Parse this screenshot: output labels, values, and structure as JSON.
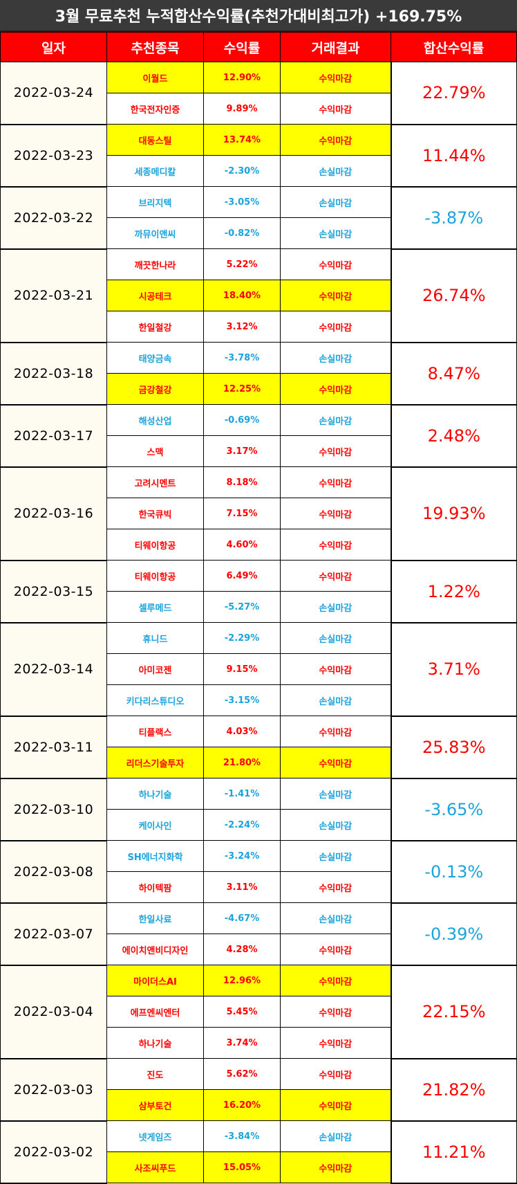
{
  "title": "3월 무료추천 누적합산수익률(추천가대비최고가) +169.75%",
  "headers": [
    "일자",
    "추천종목",
    "수익률",
    "거래결과",
    "합산수익률"
  ],
  "colors": {
    "profit": "#ff0000",
    "loss": "#1aa3dd",
    "highlight": "#ffff00",
    "header_bg": "#ff0000",
    "title_bg": "#3a3a3a"
  },
  "groups": [
    {
      "date": "2022-03-24",
      "total": "22.79%",
      "total_sign": "pos",
      "rows": [
        {
          "stock": "이월드",
          "rate": "12.90%",
          "result": "수익마감",
          "hl": true
        },
        {
          "stock": "한국전자인증",
          "rate": "9.89%",
          "result": "수익마감",
          "hl": false
        }
      ]
    },
    {
      "date": "2022-03-23",
      "total": "11.44%",
      "total_sign": "pos",
      "rows": [
        {
          "stock": "대동스틸",
          "rate": "13.74%",
          "result": "수익마감",
          "hl": true
        },
        {
          "stock": "세종메디칼",
          "rate": "-2.30%",
          "result": "손실마감",
          "hl": false
        }
      ]
    },
    {
      "date": "2022-03-22",
      "total": "-3.87%",
      "total_sign": "neg",
      "rows": [
        {
          "stock": "브리지텍",
          "rate": "-3.05%",
          "result": "손실마감",
          "hl": false
        },
        {
          "stock": "까뮤이앤씨",
          "rate": "-0.82%",
          "result": "손실마감",
          "hl": false
        }
      ]
    },
    {
      "date": "2022-03-21",
      "total": "26.74%",
      "total_sign": "pos",
      "rows": [
        {
          "stock": "깨끗한나라",
          "rate": "5.22%",
          "result": "수익마감",
          "hl": false
        },
        {
          "stock": "시공테크",
          "rate": "18.40%",
          "result": "수익마감",
          "hl": true
        },
        {
          "stock": "한일철강",
          "rate": "3.12%",
          "result": "수익마감",
          "hl": false
        }
      ]
    },
    {
      "date": "2022-03-18",
      "total": "8.47%",
      "total_sign": "pos",
      "rows": [
        {
          "stock": "태양금속",
          "rate": "-3.78%",
          "result": "손실마감",
          "hl": false
        },
        {
          "stock": "금강철강",
          "rate": "12.25%",
          "result": "수익마감",
          "hl": true
        }
      ]
    },
    {
      "date": "2022-03-17",
      "total": "2.48%",
      "total_sign": "pos",
      "rows": [
        {
          "stock": "해성산업",
          "rate": "-0.69%",
          "result": "손실마감",
          "hl": false
        },
        {
          "stock": "스맥",
          "rate": "3.17%",
          "result": "수익마감",
          "hl": false
        }
      ]
    },
    {
      "date": "2022-03-16",
      "total": "19.93%",
      "total_sign": "pos",
      "rows": [
        {
          "stock": "고려시멘트",
          "rate": "8.18%",
          "result": "수익마감",
          "hl": false
        },
        {
          "stock": "한국큐빅",
          "rate": "7.15%",
          "result": "수익마감",
          "hl": false
        },
        {
          "stock": "티웨이항공",
          "rate": "4.60%",
          "result": "수익마감",
          "hl": false
        }
      ]
    },
    {
      "date": "2022-03-15",
      "total": "1.22%",
      "total_sign": "pos",
      "rows": [
        {
          "stock": "티웨이항공",
          "rate": "6.49%",
          "result": "수익마감",
          "hl": false
        },
        {
          "stock": "셀루메드",
          "rate": "-5.27%",
          "result": "손실마감",
          "hl": false
        }
      ]
    },
    {
      "date": "2022-03-14",
      "total": "3.71%",
      "total_sign": "pos",
      "rows": [
        {
          "stock": "휴니드",
          "rate": "-2.29%",
          "result": "손실마감",
          "hl": false
        },
        {
          "stock": "아미코젠",
          "rate": "9.15%",
          "result": "수익마감",
          "hl": false
        },
        {
          "stock": "키다리스튜디오",
          "rate": "-3.15%",
          "result": "손실마감",
          "hl": false
        }
      ]
    },
    {
      "date": "2022-03-11",
      "total": "25.83%",
      "total_sign": "pos",
      "rows": [
        {
          "stock": "티플랙스",
          "rate": "4.03%",
          "result": "수익마감",
          "hl": false
        },
        {
          "stock": "리더스기술투자",
          "rate": "21.80%",
          "result": "수익마감",
          "hl": true
        }
      ]
    },
    {
      "date": "2022-03-10",
      "total": "-3.65%",
      "total_sign": "neg",
      "rows": [
        {
          "stock": "하나기술",
          "rate": "-1.41%",
          "result": "손실마감",
          "hl": false
        },
        {
          "stock": "케이사인",
          "rate": "-2.24%",
          "result": "손실마감",
          "hl": false
        }
      ]
    },
    {
      "date": "2022-03-08",
      "total": "-0.13%",
      "total_sign": "neg",
      "rows": [
        {
          "stock": "SH에너지화학",
          "rate": "-3.24%",
          "result": "손실마감",
          "hl": false
        },
        {
          "stock": "하이텍팜",
          "rate": "3.11%",
          "result": "수익마감",
          "hl": false
        }
      ]
    },
    {
      "date": "2022-03-07",
      "total": "-0.39%",
      "total_sign": "neg",
      "rows": [
        {
          "stock": "한일사료",
          "rate": "-4.67%",
          "result": "손실마감",
          "hl": false
        },
        {
          "stock": "에이치앤비디자인",
          "rate": "4.28%",
          "result": "수익마감",
          "hl": false
        }
      ]
    },
    {
      "date": "2022-03-04",
      "total": "22.15%",
      "total_sign": "pos",
      "rows": [
        {
          "stock": "마이더스AI",
          "rate": "12.96%",
          "result": "수익마감",
          "hl": true
        },
        {
          "stock": "에프엔씨엔터",
          "rate": "5.45%",
          "result": "수익마감",
          "hl": false
        },
        {
          "stock": "하나기술",
          "rate": "3.74%",
          "result": "수익마감",
          "hl": false
        }
      ]
    },
    {
      "date": "2022-03-03",
      "total": "21.82%",
      "total_sign": "pos",
      "rows": [
        {
          "stock": "진도",
          "rate": "5.62%",
          "result": "수익마감",
          "hl": false
        },
        {
          "stock": "삼부토건",
          "rate": "16.20%",
          "result": "수익마감",
          "hl": true
        }
      ]
    },
    {
      "date": "2022-03-02",
      "total": "11.21%",
      "total_sign": "pos",
      "rows": [
        {
          "stock": "넷게임즈",
          "rate": "-3.84%",
          "result": "손실마감",
          "hl": false
        },
        {
          "stock": "사조씨푸드",
          "rate": "15.05%",
          "result": "수익마감",
          "hl": true
        }
      ]
    }
  ]
}
